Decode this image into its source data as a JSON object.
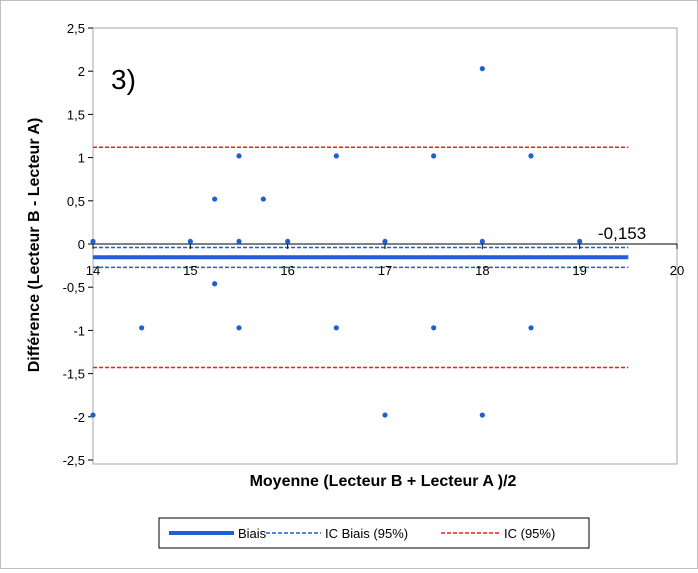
{
  "chart_data": {
    "type": "scatter",
    "panel_label": "3)",
    "xlabel": "Moyenne (Lecteur B + Lecteur A )/2",
    "ylabel": "Différence (Lecteur B - Lecteur A)",
    "xlim": [
      14,
      20
    ],
    "ylim": [
      -2.5,
      2.5
    ],
    "x_ticks": [
      "14",
      "15",
      "16",
      "17",
      "18",
      "19",
      "20"
    ],
    "y_ticks": [
      "2,5",
      "2",
      "1,5",
      "1",
      "0,5",
      "0",
      "-0,5",
      "-1",
      "-1,5",
      "-2",
      "-2,5"
    ],
    "bias_label": "-0,153",
    "points": [
      {
        "x": 14.0,
        "y": 0.03
      },
      {
        "x": 14.0,
        "y": -1.98
      },
      {
        "x": 14.5,
        "y": -0.97
      },
      {
        "x": 15.0,
        "y": 0.03
      },
      {
        "x": 15.25,
        "y": 0.52
      },
      {
        "x": 15.25,
        "y": -0.46
      },
      {
        "x": 15.5,
        "y": 1.02
      },
      {
        "x": 15.5,
        "y": 0.03
      },
      {
        "x": 15.5,
        "y": -0.97
      },
      {
        "x": 15.75,
        "y": 0.52
      },
      {
        "x": 16.0,
        "y": 0.03
      },
      {
        "x": 16.5,
        "y": 1.02
      },
      {
        "x": 16.5,
        "y": -0.97
      },
      {
        "x": 17.0,
        "y": 0.03
      },
      {
        "x": 17.0,
        "y": -1.98
      },
      {
        "x": 17.5,
        "y": 1.02
      },
      {
        "x": 17.5,
        "y": -0.97
      },
      {
        "x": 18.0,
        "y": 2.03
      },
      {
        "x": 18.0,
        "y": 0.03
      },
      {
        "x": 18.0,
        "y": -1.98
      },
      {
        "x": 18.5,
        "y": 1.02
      },
      {
        "x": 18.5,
        "y": -0.97
      },
      {
        "x": 19.0,
        "y": 0.03
      }
    ],
    "lines": [
      {
        "name": "Biais",
        "y": -0.153,
        "style": "solid",
        "color": "#1f5fd6"
      },
      {
        "name": "IC Biais (95%)",
        "y": [
          -0.04,
          -0.27
        ],
        "style": "dashed",
        "color": "#1f5fd6"
      },
      {
        "name": "IC (95%)",
        "y": [
          1.12,
          -1.43
        ],
        "style": "dashed",
        "color": "#e8211b"
      }
    ],
    "lines_x_range": [
      14,
      19.5
    ],
    "legend_position": "bottom",
    "grid": false,
    "colors": {
      "points": "#1f5fd6",
      "bias": "#1f5fd6",
      "ci_bias": "#1f5fd6",
      "ci": "#e8211b"
    }
  }
}
